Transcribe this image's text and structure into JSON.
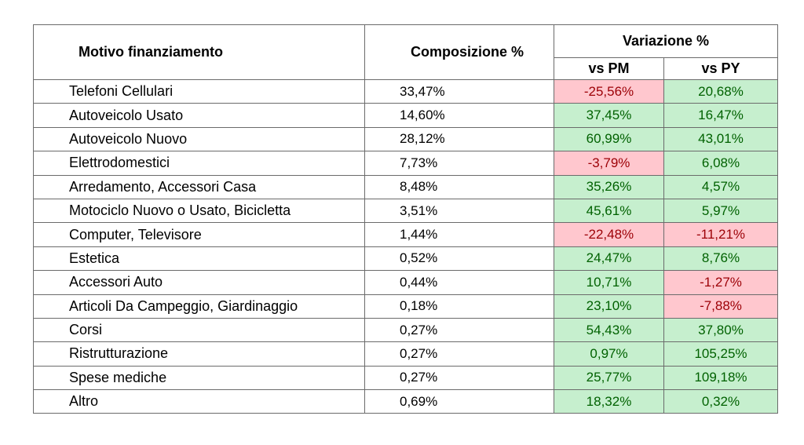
{
  "headers": {
    "motivo": "Motivo finanziamento",
    "composizione": "Composizione %",
    "variazione": "Variazione %",
    "vs_pm": "vs PM",
    "vs_py": "vs PY"
  },
  "colors": {
    "positive_bg": "#c6efce",
    "positive_text": "#006100",
    "negative_bg": "#ffc7ce",
    "negative_text": "#9c0006"
  },
  "rows": [
    {
      "motivo": "Telefoni Cellulari",
      "composizione": "33,47%",
      "vs_pm": "-25,56%",
      "vs_py": "20,68%"
    },
    {
      "motivo": "Autoveicolo Usato",
      "composizione": "14,60%",
      "vs_pm": "37,45%",
      "vs_py": "16,47%"
    },
    {
      "motivo": "Autoveicolo Nuovo",
      "composizione": "28,12%",
      "vs_pm": "60,99%",
      "vs_py": "43,01%"
    },
    {
      "motivo": "Elettrodomestici",
      "composizione": "7,73%",
      "vs_pm": "-3,79%",
      "vs_py": "6,08%"
    },
    {
      "motivo": "Arredamento, Accessori Casa",
      "composizione": "8,48%",
      "vs_pm": "35,26%",
      "vs_py": "4,57%"
    },
    {
      "motivo": "Motociclo Nuovo o Usato, Bicicletta",
      "composizione": "3,51%",
      "vs_pm": "45,61%",
      "vs_py": "5,97%"
    },
    {
      "motivo": "Computer, Televisore",
      "composizione": "1,44%",
      "vs_pm": "-22,48%",
      "vs_py": "-11,21%"
    },
    {
      "motivo": "Estetica",
      "composizione": "0,52%",
      "vs_pm": "24,47%",
      "vs_py": "8,76%"
    },
    {
      "motivo": "Accessori Auto",
      "composizione": "0,44%",
      "vs_pm": "10,71%",
      "vs_py": "-1,27%"
    },
    {
      "motivo": "Articoli Da Campeggio, Giardinaggio",
      "composizione": "0,18%",
      "vs_pm": "23,10%",
      "vs_py": "-7,88%"
    },
    {
      "motivo": "Corsi",
      "composizione": "0,27%",
      "vs_pm": "54,43%",
      "vs_py": "37,80%"
    },
    {
      "motivo": "Ristrutturazione",
      "composizione": "0,27%",
      "vs_pm": "0,97%",
      "vs_py": "105,25%"
    },
    {
      "motivo": "Spese mediche",
      "composizione": "0,27%",
      "vs_pm": "25,77%",
      "vs_py": "109,18%"
    },
    {
      "motivo": "Altro",
      "composizione": "0,69%",
      "vs_pm": "18,32%",
      "vs_py": "0,32%"
    }
  ]
}
